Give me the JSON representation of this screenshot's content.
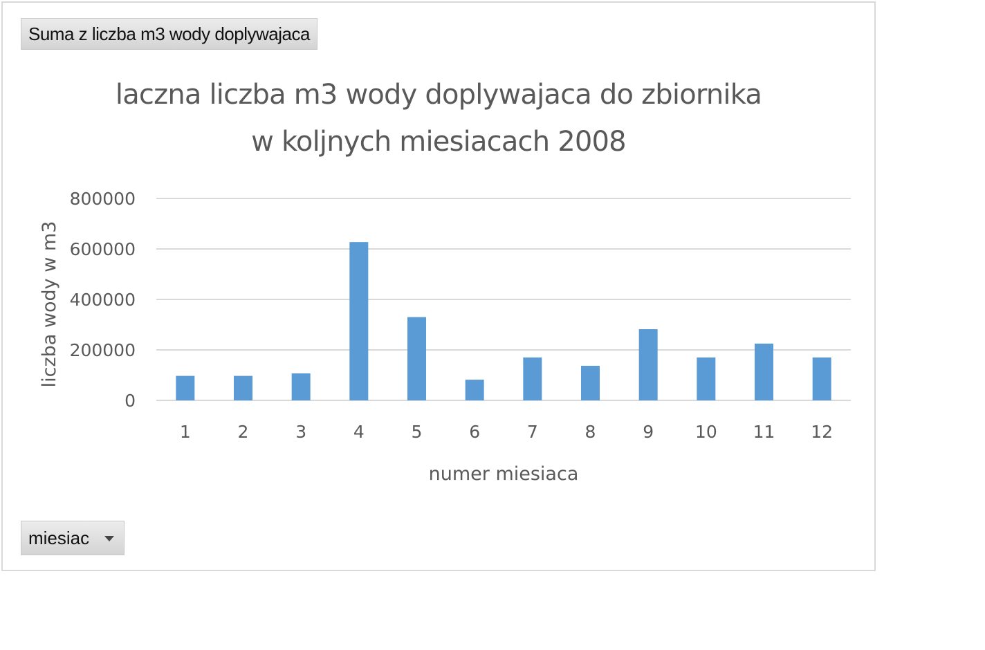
{
  "pivot": {
    "value_field_label": "Suma z liczba m3 wody doplywajaca",
    "axis_field_label": "miesiac"
  },
  "colors": {
    "bar": "#5b9bd5",
    "grid": "#d9d9d9",
    "text": "#595959"
  },
  "chart_data": {
    "type": "bar",
    "title_lines": [
      "laczna liczba m3 wody doplywajaca do zbiornika",
      "w koljnych miesiacach 2008"
    ],
    "xlabel": "numer miesiaca",
    "ylabel": "liczba wody w m3",
    "categories": [
      "1",
      "2",
      "3",
      "4",
      "5",
      "6",
      "7",
      "8",
      "9",
      "10",
      "11",
      "12"
    ],
    "values": [
      97000,
      97000,
      107000,
      627000,
      330000,
      82000,
      170000,
      137000,
      282000,
      170000,
      225000,
      170000
    ],
    "ylim": [
      0,
      800000
    ],
    "yticks": [
      "0",
      "200000",
      "400000",
      "600000",
      "800000"
    ],
    "grid": true,
    "legend": false
  }
}
